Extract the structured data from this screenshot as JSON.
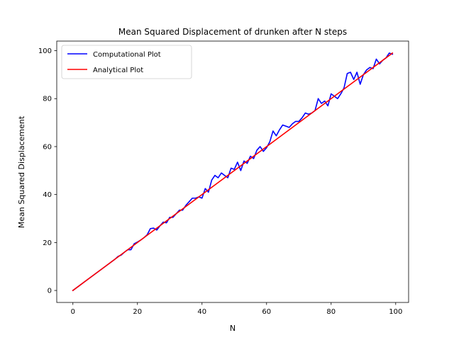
{
  "chart_data": {
    "type": "line",
    "title": "Mean Squared Displacement of drunken after N steps",
    "xlabel": "N",
    "ylabel": "Mean Squared Displacement",
    "xlim": [
      -5,
      104
    ],
    "ylim": [
      -5,
      104
    ],
    "xticks": [
      0,
      20,
      40,
      60,
      80,
      100
    ],
    "yticks": [
      0,
      20,
      40,
      60,
      80,
      100
    ],
    "grid": false,
    "legend_position": "upper-left",
    "series": [
      {
        "name": "Computational Plot",
        "color": "#0000ff",
        "x": [
          0,
          1,
          2,
          3,
          4,
          5,
          6,
          7,
          8,
          9,
          10,
          11,
          12,
          13,
          14,
          15,
          16,
          17,
          18,
          19,
          20,
          21,
          22,
          23,
          24,
          25,
          26,
          27,
          28,
          29,
          30,
          31,
          32,
          33,
          34,
          35,
          36,
          37,
          38,
          39,
          40,
          41,
          42,
          43,
          44,
          45,
          46,
          47,
          48,
          49,
          50,
          51,
          52,
          53,
          54,
          55,
          56,
          57,
          58,
          59,
          60,
          61,
          62,
          63,
          64,
          65,
          66,
          67,
          68,
          69,
          70,
          71,
          72,
          73,
          74,
          75,
          76,
          77,
          78,
          79,
          80,
          81,
          82,
          83,
          84,
          85,
          86,
          87,
          88,
          89,
          90,
          91,
          92,
          93,
          94,
          95,
          96,
          97,
          98,
          99
        ],
        "y": [
          0,
          1,
          2,
          3,
          4,
          5,
          6,
          7,
          8,
          9,
          10,
          11,
          12,
          13,
          14.2,
          14.8,
          16,
          17,
          17,
          19.5,
          20.2,
          21,
          22,
          23.2,
          25.8,
          26,
          25.2,
          27,
          28.5,
          28.2,
          30.5,
          30.5,
          32,
          33.5,
          33.5,
          35.5,
          37,
          38.5,
          38.5,
          39,
          38.5,
          42.5,
          41,
          46,
          48,
          47,
          49,
          48,
          47,
          51,
          50.5,
          53.5,
          50,
          54,
          53,
          56,
          55,
          58.5,
          60,
          58,
          59.5,
          62,
          66.5,
          64.5,
          67,
          69,
          68.5,
          68,
          69.5,
          70.5,
          70.5,
          72,
          74,
          73.5,
          74,
          75,
          80,
          78,
          79,
          77,
          82,
          81,
          80,
          82,
          84.5,
          90.5,
          91,
          88,
          91,
          86,
          90,
          92,
          93,
          92.5,
          96.5,
          94.5,
          96,
          97,
          99,
          98.5
        ]
      },
      {
        "name": "Analytical Plot",
        "color": "#ff0000",
        "x": [
          0,
          99
        ],
        "y": [
          0,
          99
        ]
      }
    ]
  }
}
